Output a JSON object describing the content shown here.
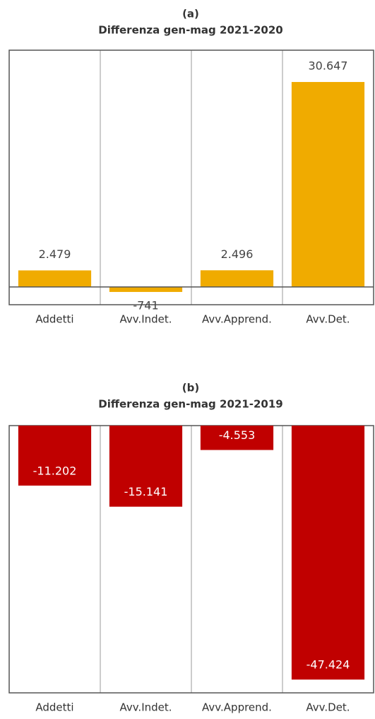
{
  "chart_data": [
    {
      "type": "bar",
      "title": "(a)",
      "subtitle": "Differenza gen-mag 2021-2020",
      "categories": [
        "Addetti",
        "Avv.Indet.",
        "Avv.Apprend.",
        "Avv.Det."
      ],
      "values": [
        2479,
        -741,
        2496,
        30647
      ],
      "value_labels": [
        "2.479",
        "-741",
        "2.496",
        "30.647"
      ],
      "value_label_position": "outside",
      "color": "#f0ab00",
      "ylim": [
        -2650,
        35400
      ]
    },
    {
      "type": "bar",
      "title": "(b)",
      "subtitle": "Differenza gen-mag 2021-2019",
      "categories": [
        "Addetti",
        "Avv.Indet.",
        "Avv.Apprend.",
        "Avv.Det."
      ],
      "values": [
        -11202,
        -15141,
        -4553,
        -47424
      ],
      "value_labels": [
        "-11.202",
        "-15.141",
        "-4.553",
        "-47.424"
      ],
      "value_label_position": "inside",
      "color": "#c00000",
      "ylim": [
        -49900,
        0
      ]
    }
  ]
}
